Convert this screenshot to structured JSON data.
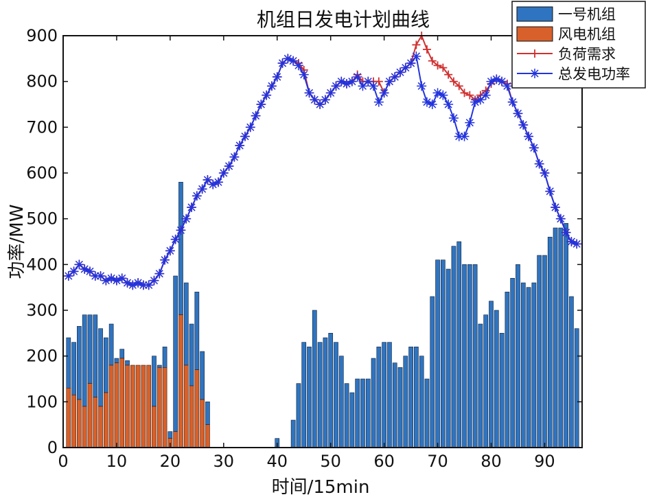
{
  "chart_data": {
    "type": "bar",
    "title": "机组日发电计划曲线",
    "xlabel": "时间/15min",
    "ylabel": "功率/MW",
    "xlim": [
      0,
      97
    ],
    "ylim": [
      0,
      900
    ],
    "x_ticks": [
      0,
      10,
      20,
      30,
      40,
      50,
      60,
      70,
      80,
      90
    ],
    "y_ticks": [
      0,
      100,
      200,
      300,
      400,
      500,
      600,
      700,
      800,
      900
    ],
    "grid": false,
    "legend_position": "top-right",
    "colors": {
      "unit1": "#2f74c0",
      "wind": "#d8602a",
      "load": "#d03030",
      "total": "#2233dd"
    },
    "x": [
      1,
      2,
      3,
      4,
      5,
      6,
      7,
      8,
      9,
      10,
      11,
      12,
      13,
      14,
      15,
      16,
      17,
      18,
      19,
      20,
      21,
      22,
      23,
      24,
      25,
      26,
      27,
      28,
      29,
      30,
      31,
      32,
      33,
      34,
      35,
      36,
      37,
      38,
      39,
      40,
      41,
      42,
      43,
      44,
      45,
      46,
      47,
      48,
      49,
      50,
      51,
      52,
      53,
      54,
      55,
      56,
      57,
      58,
      59,
      60,
      61,
      62,
      63,
      64,
      65,
      66,
      67,
      68,
      69,
      70,
      71,
      72,
      73,
      74,
      75,
      76,
      77,
      78,
      79,
      80,
      81,
      82,
      83,
      84,
      85,
      86,
      87,
      88,
      89,
      90,
      91,
      92,
      93,
      94,
      95,
      96
    ],
    "series": [
      {
        "name": "一号机组",
        "kind": "bar",
        "stacked_on": "风电机组",
        "values": [
          110,
          115,
          160,
          200,
          150,
          180,
          170,
          120,
          90,
          10,
          20,
          10,
          0,
          0,
          0,
          0,
          110,
          5,
          45,
          15,
          340,
          290,
          180,
          135,
          170,
          105,
          50,
          0,
          0,
          0,
          0,
          0,
          0,
          0,
          0,
          0,
          0,
          0,
          0,
          20,
          0,
          0,
          60,
          140,
          230,
          220,
          300,
          230,
          240,
          250,
          230,
          200,
          140,
          120,
          150,
          150,
          150,
          195,
          220,
          230,
          230,
          185,
          175,
          200,
          220,
          220,
          200,
          150,
          330,
          410,
          410,
          390,
          440,
          450,
          400,
          400,
          400,
          270,
          290,
          320,
          300,
          250,
          340,
          370,
          400,
          360,
          350,
          360,
          420,
          420,
          460,
          480,
          480,
          490,
          330,
          260
        ],
        "values_note": "segment height above wind bar"
      },
      {
        "name": "风电机组",
        "kind": "bar",
        "values": [
          130,
          115,
          105,
          90,
          140,
          110,
          90,
          120,
          180,
          185,
          195,
          180,
          180,
          180,
          180,
          180,
          90,
          175,
          175,
          20,
          35,
          290,
          180,
          135,
          170,
          105,
          50,
          0,
          0,
          0,
          0,
          0,
          0,
          0,
          0,
          0,
          0,
          0,
          0,
          0,
          0,
          0,
          0,
          0,
          0,
          0,
          0,
          0,
          0,
          0,
          0,
          0,
          0,
          0,
          0,
          0,
          0,
          0,
          0,
          0,
          0,
          0,
          0,
          0,
          0,
          0,
          0,
          0,
          0,
          0,
          0,
          0,
          0,
          0,
          0,
          0,
          0,
          0,
          0,
          0,
          0,
          0,
          0,
          0,
          0,
          0,
          0,
          0,
          0,
          0,
          0,
          0,
          0,
          0,
          0,
          0
        ]
      },
      {
        "name": "负荷需求",
        "kind": "line",
        "marker": "plus",
        "values": [
          375,
          385,
          400,
          390,
          385,
          375,
          375,
          365,
          370,
          365,
          370,
          360,
          355,
          360,
          355,
          355,
          365,
          380,
          410,
          430,
          455,
          475,
          500,
          525,
          550,
          565,
          585,
          575,
          580,
          600,
          615,
          635,
          660,
          680,
          700,
          725,
          750,
          770,
          790,
          810,
          840,
          850,
          845,
          840,
          825,
          775,
          760,
          750,
          760,
          775,
          790,
          800,
          795,
          800,
          815,
          800,
          800,
          800,
          800,
          775,
          800,
          810,
          820,
          830,
          840,
          880,
          900,
          870,
          845,
          835,
          830,
          815,
          800,
          790,
          775,
          770,
          760,
          770,
          780,
          795,
          805,
          800,
          795,
          755,
          730,
          705,
          680,
          655,
          620,
          600,
          560,
          525,
          500,
          470,
          450,
          445
        ]
      },
      {
        "name": "总发电功率",
        "kind": "line",
        "marker": "asterisk",
        "values": [
          375,
          385,
          400,
          390,
          385,
          375,
          375,
          365,
          370,
          365,
          370,
          360,
          355,
          360,
          355,
          355,
          365,
          380,
          410,
          430,
          455,
          475,
          500,
          525,
          550,
          565,
          585,
          575,
          580,
          600,
          615,
          635,
          660,
          680,
          700,
          725,
          750,
          770,
          790,
          810,
          840,
          850,
          845,
          835,
          815,
          775,
          760,
          750,
          760,
          775,
          790,
          800,
          795,
          800,
          810,
          790,
          800,
          790,
          755,
          775,
          800,
          810,
          820,
          830,
          840,
          855,
          790,
          755,
          750,
          775,
          770,
          750,
          720,
          680,
          680,
          710,
          755,
          760,
          770,
          800,
          805,
          800,
          790,
          755,
          730,
          705,
          680,
          655,
          620,
          600,
          560,
          525,
          500,
          470,
          450,
          445
        ]
      }
    ]
  }
}
